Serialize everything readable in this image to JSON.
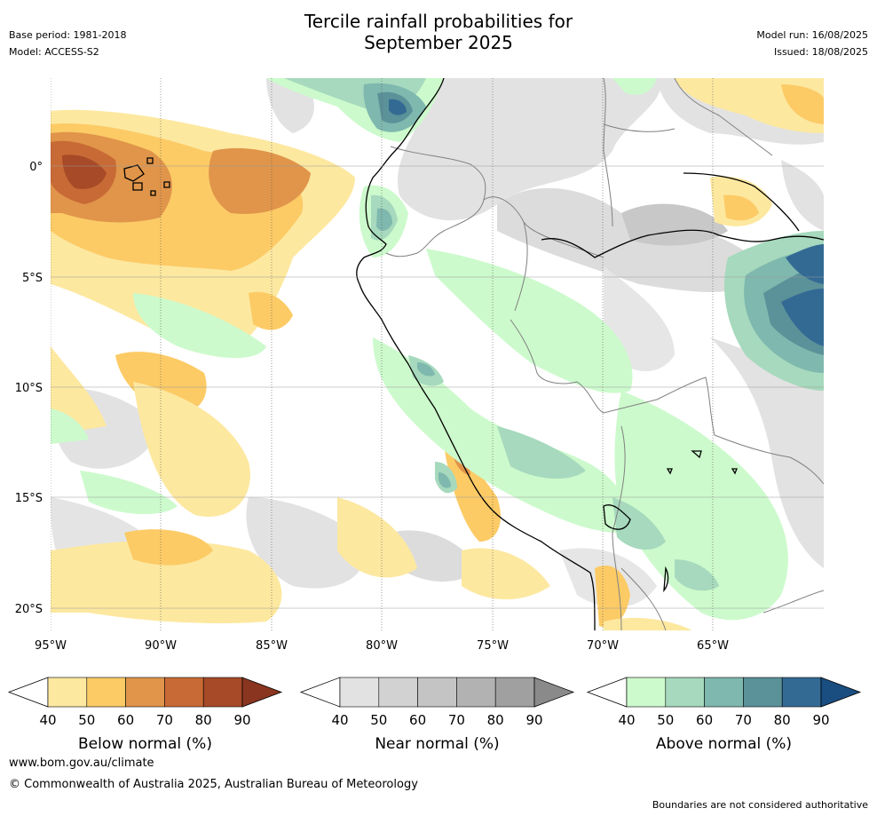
{
  "header": {
    "title_line1": "Tercile rainfall probabilities for",
    "title_line2": "September 2025",
    "base_period": "Base period: 1981-2018",
    "model": "Model: ACCESS-S2",
    "model_run": "Model run: 16/08/2025",
    "issued": "Issued: 18/08/2025"
  },
  "map": {
    "lon_labels": [
      "95°W",
      "90°W",
      "85°W",
      "80°W",
      "75°W",
      "70°W",
      "65°W"
    ],
    "lat_labels": [
      "0°",
      "5°S",
      "10°S",
      "15°S",
      "20°S"
    ],
    "colors": {
      "below": [
        "#fde8a0",
        "#fccb66",
        "#e0954a",
        "#c86a35",
        "#a64a28",
        "#8a3520"
      ],
      "near": [
        "#e2e2e2",
        "#d2d2d2",
        "#c4c4c4",
        "#b2b2b2",
        "#a0a0a0",
        "#8a8a8a"
      ],
      "above": [
        "#ccfacc",
        "#a6d9bd",
        "#7fb8ae",
        "#5b9199",
        "#336a94",
        "#1a4d80"
      ],
      "coast": "#000000",
      "border": "#808080",
      "grid": "#555555"
    }
  },
  "colorbars": [
    {
      "label": "Below normal (%)",
      "ticks": [
        "40",
        "50",
        "60",
        "70",
        "80",
        "90"
      ]
    },
    {
      "label": "Near normal (%)",
      "ticks": [
        "40",
        "50",
        "60",
        "70",
        "80",
        "90"
      ]
    },
    {
      "label": "Above normal (%)",
      "ticks": [
        "40",
        "50",
        "60",
        "70",
        "80",
        "90"
      ]
    }
  ],
  "footer": {
    "url": "www.bom.gov.au/climate",
    "copyright": "© Commonwealth of Australia 2025, Australian Bureau of Meteorology",
    "disclaimer": "Boundaries are not considered authoritative"
  }
}
